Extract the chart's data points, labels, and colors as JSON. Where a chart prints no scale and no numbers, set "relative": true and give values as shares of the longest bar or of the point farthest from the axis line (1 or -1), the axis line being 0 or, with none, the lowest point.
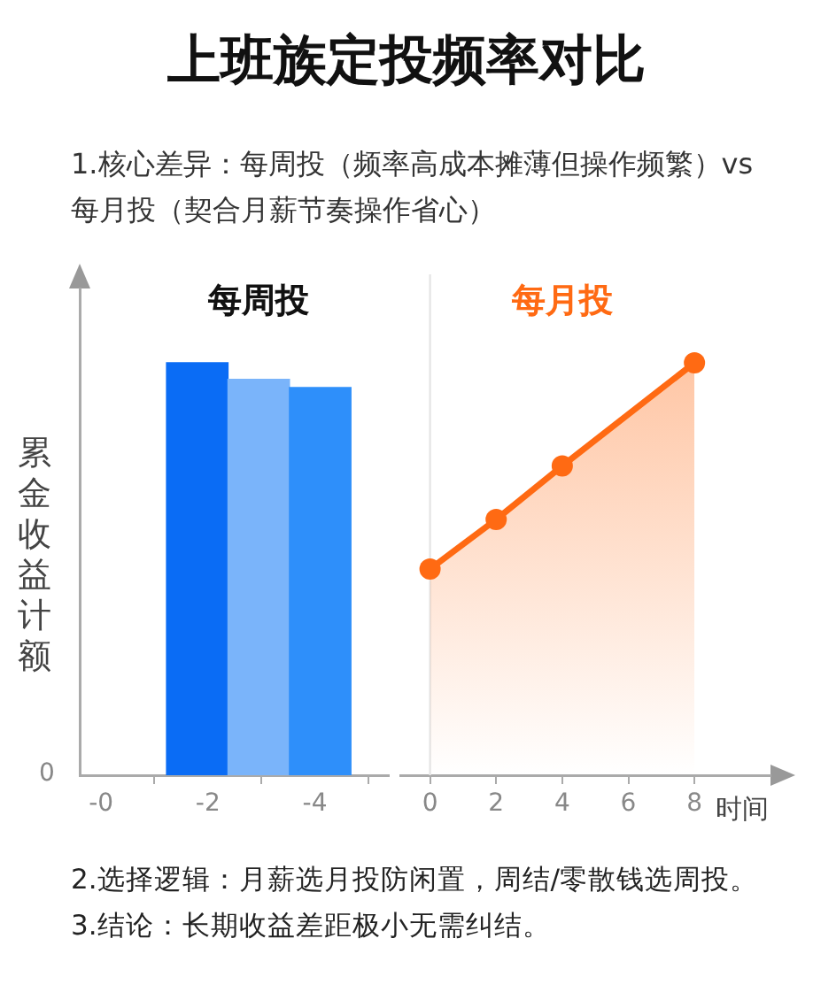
{
  "chart_data": [
    {
      "type": "bar",
      "title": "上班族定投频率对比",
      "subtitle": "1.核心差异：每周投（频率高成本摊薄但操作频繁）vs每月投（契合月薪节奏操作省心）",
      "ylabel": "累金收益计额",
      "xlim": [
        0.4,
        -5.4
      ],
      "xticks": [
        {
          "value": 0,
          "label": "-0"
        },
        -2,
        -4
      ],
      "relative": true,
      "series": [
        {
          "name": "每周投",
          "x": [
            -1.8,
            -2.95,
            -4.1
          ],
          "values": [
            1,
            0.96,
            0.94
          ],
          "colors": [
            "#0a6cf5",
            "#7ab4fa",
            "#2e8ffa"
          ]
        }
      ],
      "annotations": [
        "0"
      ],
      "legend": false,
      "grid": false
    },
    {
      "type": "area",
      "xlabel": "时间",
      "xlim": [
        -0.9,
        10.3
      ],
      "xticks": [
        0,
        2,
        4,
        6,
        8
      ],
      "relative": true,
      "tick_labels": "x",
      "series": [
        {
          "name": "每月投",
          "color": "#ff6a13",
          "x": [
            0,
            2,
            4,
            8
          ],
          "values": [
            0.5,
            0.62,
            0.75,
            1
          ]
        }
      ],
      "ref_lines": [
        {
          "axis": "x",
          "value": 0,
          "color": "#e6e6e6"
        }
      ],
      "annotations": [
        "2.选择逻辑：月薪选月投防闲置，周结/零散钱选周投。",
        "3.结论：长期收益差距极小无需纠结。"
      ],
      "marker": "circle",
      "legend": false,
      "grid": false
    }
  ]
}
